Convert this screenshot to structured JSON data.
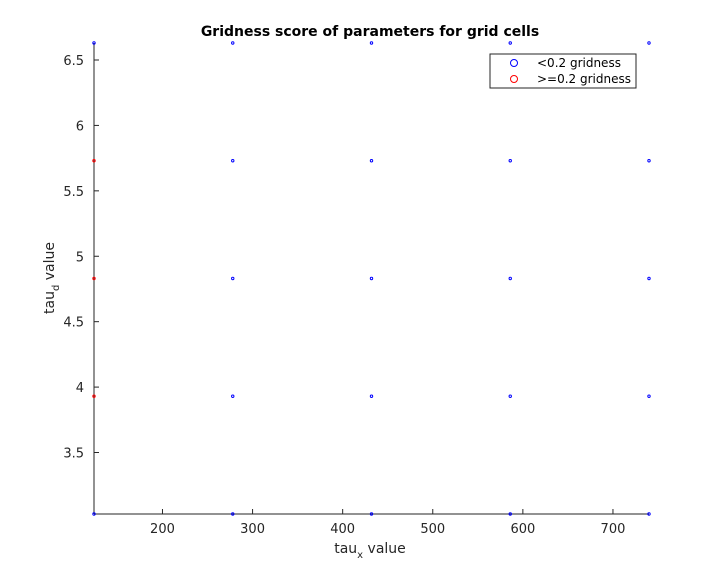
{
  "chart_data": {
    "type": "scatter",
    "title": "Gridness score of parameters for grid cells",
    "xlabel": {
      "base": "tau",
      "subscript": "x",
      "suffix": " value"
    },
    "ylabel": {
      "base": "tau",
      "subscript": "d",
      "suffix": " value"
    },
    "xlim": [
      124,
      740
    ],
    "ylim": [
      3.03,
      6.63
    ],
    "xticks": [
      200,
      300,
      400,
      500,
      600,
      700
    ],
    "yticks": [
      3.5,
      4,
      4.5,
      5,
      5.5,
      6,
      6.5
    ],
    "grid": false,
    "legend_position": "top-right",
    "series": [
      {
        "name": "<0.2 gridness",
        "color": "#0000ff",
        "marker": "circle-open",
        "points": [
          [
            124,
            3.03
          ],
          [
            124,
            6.63
          ],
          [
            278,
            3.03
          ],
          [
            278,
            3.93
          ],
          [
            278,
            4.83
          ],
          [
            278,
            5.73
          ],
          [
            278,
            6.63
          ],
          [
            432,
            3.03
          ],
          [
            432,
            3.93
          ],
          [
            432,
            4.83
          ],
          [
            432,
            5.73
          ],
          [
            432,
            6.63
          ],
          [
            586,
            3.03
          ],
          [
            586,
            3.93
          ],
          [
            586,
            4.83
          ],
          [
            586,
            5.73
          ],
          [
            586,
            6.63
          ],
          [
            740,
            3.03
          ],
          [
            740,
            3.93
          ],
          [
            740,
            4.83
          ],
          [
            740,
            5.73
          ],
          [
            740,
            6.63
          ]
        ]
      },
      {
        "name": ">=0.2 gridness",
        "color": "#ff0000",
        "marker": "circle-open",
        "points": [
          [
            124,
            3.93
          ],
          [
            124,
            4.83
          ],
          [
            124,
            5.73
          ]
        ]
      }
    ]
  }
}
